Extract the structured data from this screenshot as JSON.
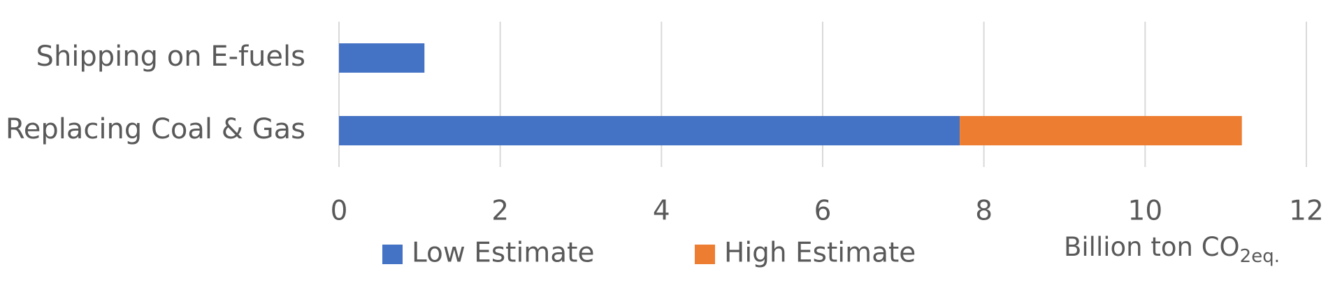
{
  "chart_data": {
    "type": "stacked_bar_horizontal",
    "categories": [
      "Shipping on E-fuels",
      "Replacing Coal & Gas"
    ],
    "series": [
      {
        "name": "Low Estimate",
        "color": "#4472c4",
        "values": [
          1.06,
          7.7
        ]
      },
      {
        "name": "High Estimate",
        "color": "#ed7d31",
        "values": [
          null,
          3.5
        ]
      }
    ],
    "xlim": [
      0,
      12
    ],
    "xticks": [
      0,
      2,
      4,
      6,
      8,
      10,
      12
    ],
    "grid": true,
    "x_label": "Billion ton CO",
    "x_label_subscript": "2eq.",
    "legend": "bottom"
  }
}
